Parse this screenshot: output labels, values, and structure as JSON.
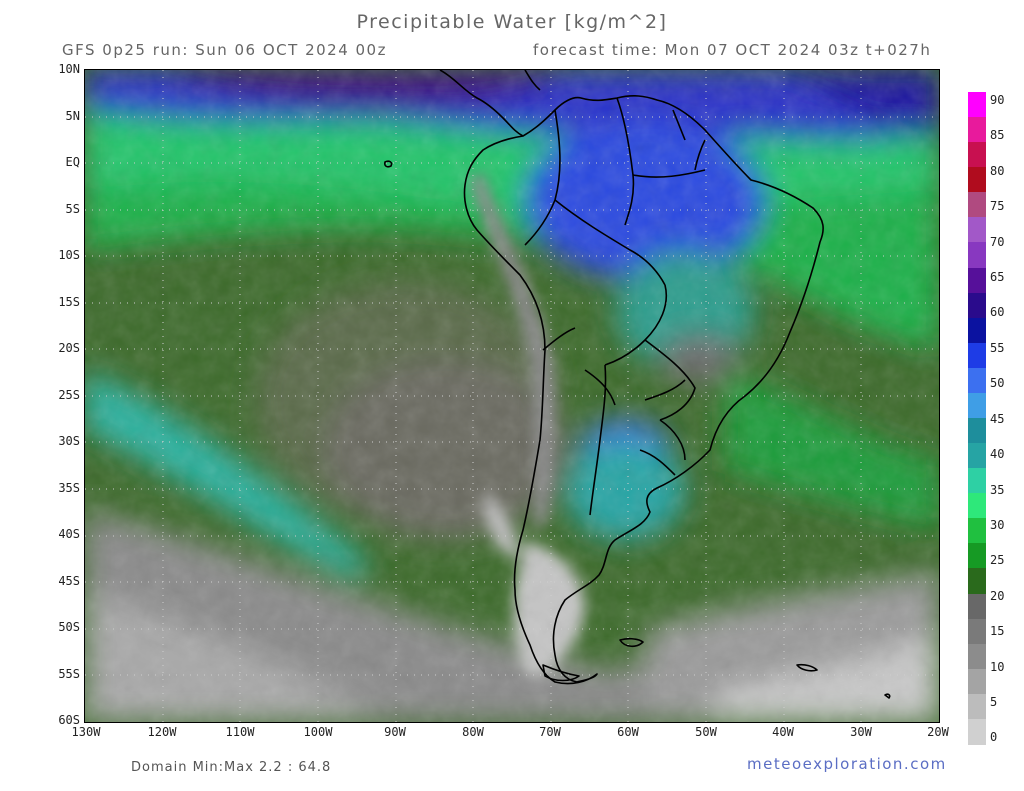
{
  "header": {
    "title": "Precipitable Water [kg/m^2]",
    "run": "GFS 0p25 run: Sun 06 OCT 2024 00z",
    "forecast": "forecast time: Mon 07 OCT 2024 03z  t+027h"
  },
  "map": {
    "lat_labels": [
      "10N",
      "5N",
      "EQ",
      "5S",
      "10S",
      "15S",
      "20S",
      "25S",
      "30S",
      "35S",
      "40S",
      "45S",
      "50S",
      "55S",
      "60S"
    ],
    "lon_labels": [
      "130W",
      "120W",
      "110W",
      "100W",
      "90W",
      "80W",
      "70W",
      "60W",
      "50W",
      "40W",
      "30W",
      "20W"
    ],
    "extent": {
      "lon": [
        -130,
        -20
      ],
      "lat": [
        -60,
        10
      ]
    }
  },
  "colorbar": {
    "labels": [
      "90",
      "85",
      "80",
      "75",
      "70",
      "65",
      "60",
      "55",
      "50",
      "45",
      "40",
      "35",
      "30",
      "25",
      "20",
      "15",
      "10",
      "5",
      "0"
    ],
    "colors": [
      "#ff00ff",
      "#e81a9c",
      "#c81050",
      "#b00c1e",
      "#b04a80",
      "#a258c8",
      "#8838c0",
      "#56109a",
      "#2a0b8c",
      "#0b12a0",
      "#1e3ce6",
      "#3c70f0",
      "#3f9ee6",
      "#1e8e9c",
      "#26a4a4",
      "#2ed0a4",
      "#2ee87a",
      "#20c040",
      "#169a24",
      "#2a6a1c",
      "#686868",
      "#7a7a7a",
      "#8c8c8c",
      "#a4a4a4",
      "#bcbcbc",
      "#d0d0d0"
    ]
  },
  "footer": {
    "domain": "Domain Min:Max 2.2 : 64.8",
    "credit": "meteoexploration.com"
  }
}
